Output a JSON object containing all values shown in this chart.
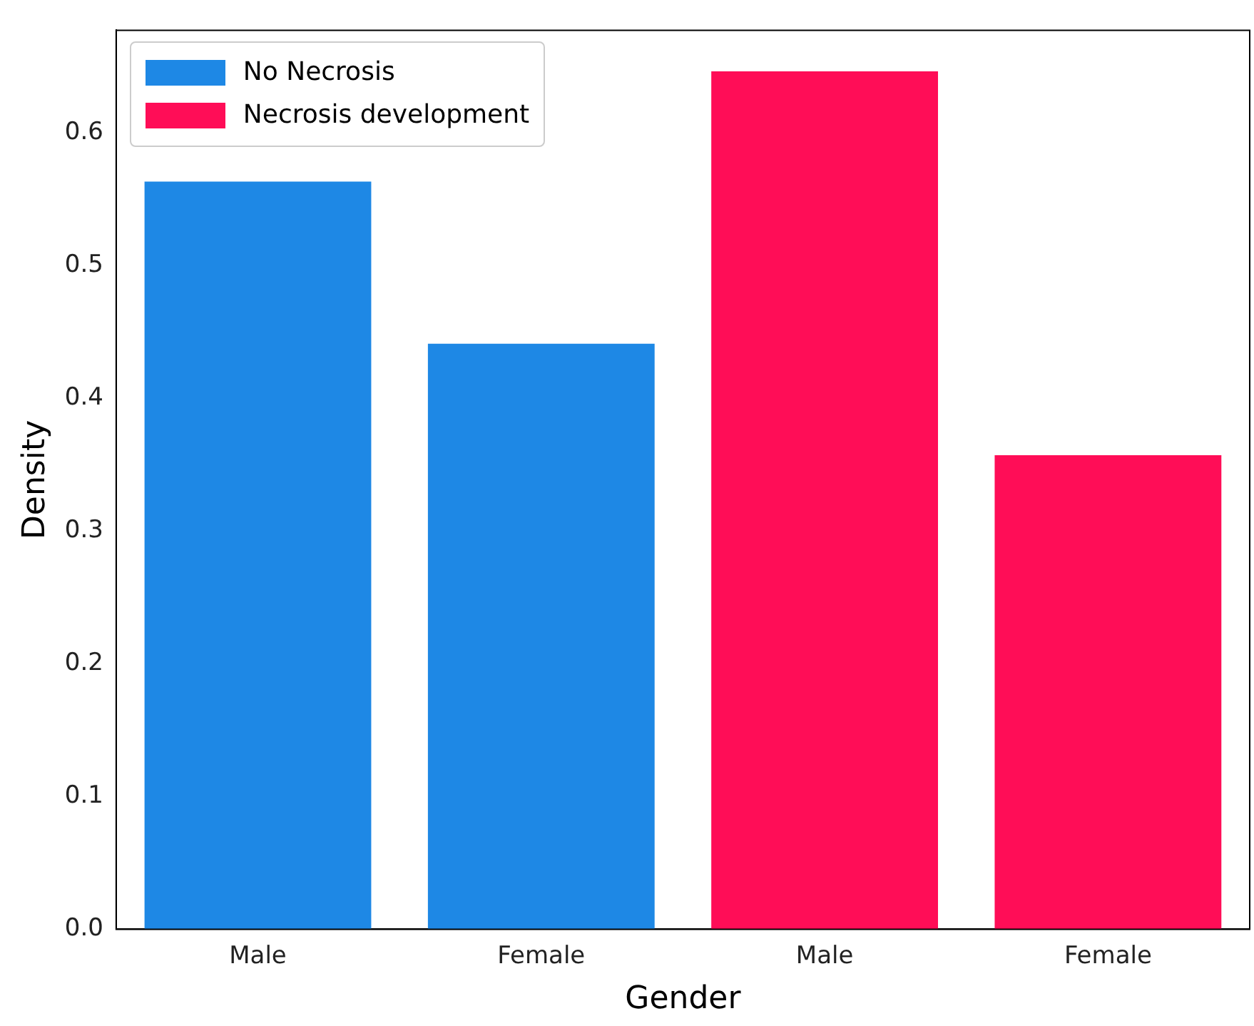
{
  "chart_data": {
    "type": "bar",
    "xlabel": "Gender",
    "ylabel": "Density",
    "categories": [
      "Male",
      "Female",
      "Male",
      "Female"
    ],
    "series": [
      {
        "name": "No Necrosis",
        "color": "#1e88e5",
        "values": [
          0.563,
          0.441,
          null,
          null
        ]
      },
      {
        "name": "Necrosis development",
        "color": "#ff0d57",
        "values": [
          null,
          null,
          0.646,
          0.357
        ]
      }
    ],
    "ylim": [
      0,
      0.677
    ],
    "yticks": [
      {
        "value": 0,
        "label": "0.0"
      },
      0.1,
      0.2,
      0.3,
      0.4,
      0.5,
      0.6
    ],
    "grid": false,
    "legend": "top left"
  }
}
